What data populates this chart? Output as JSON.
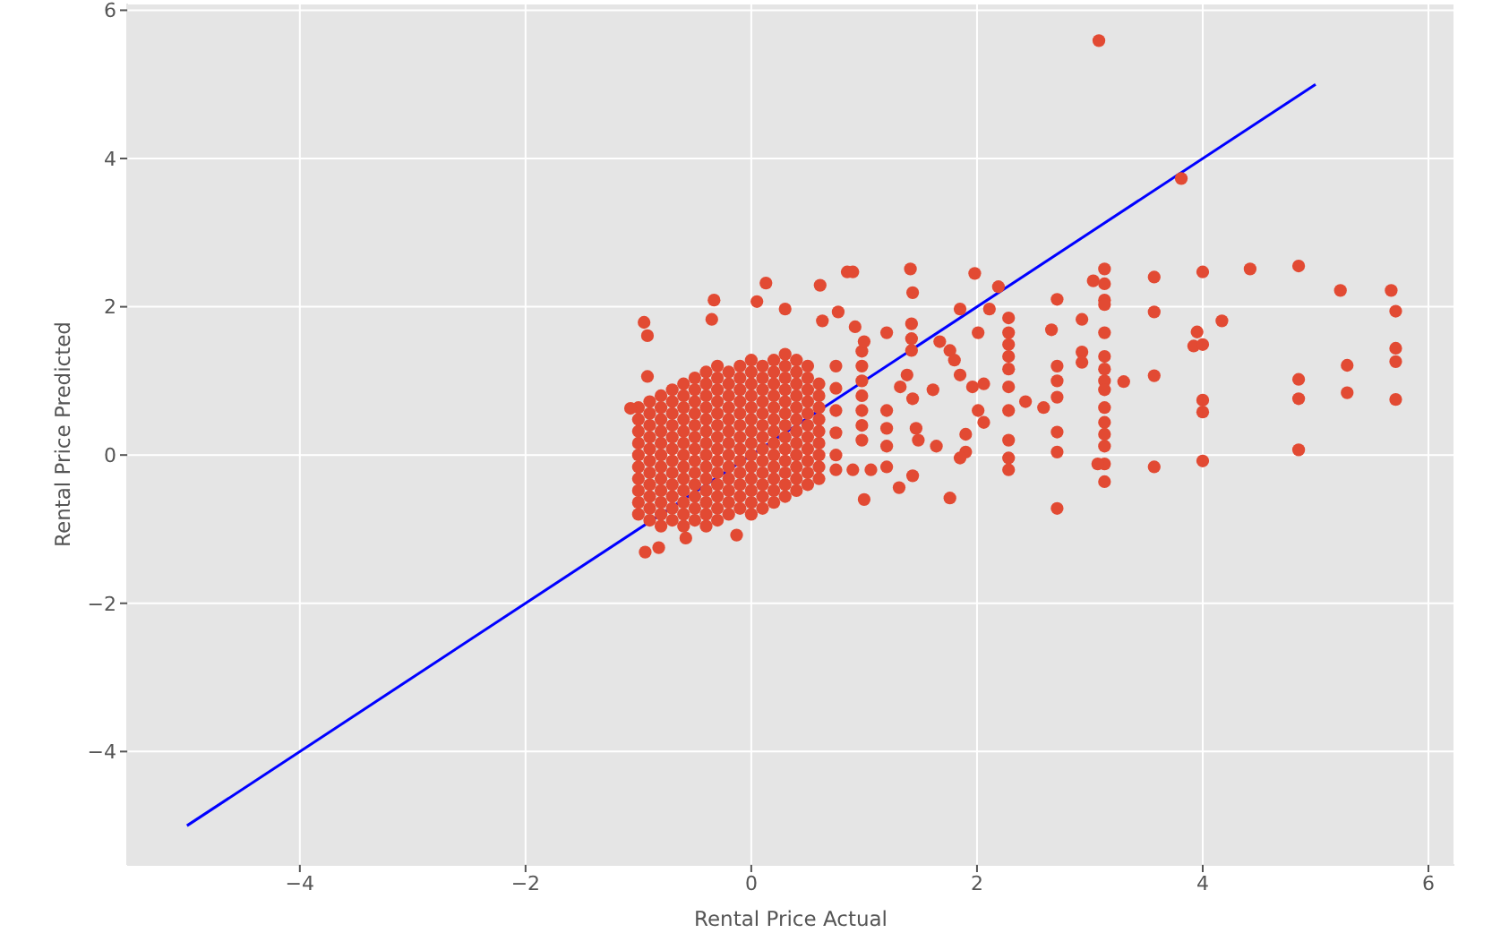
{
  "chart_data": {
    "type": "scatter",
    "xlabel": "Rental Price Actual",
    "ylabel": "Rental Price Predicted",
    "xlim": [
      -5.53,
      6.23
    ],
    "ylim": [
      -5.53,
      6.09
    ],
    "xticks": [
      {
        "value": -4,
        "label": "−4"
      },
      {
        "value": -2,
        "label": "−2"
      },
      0,
      2,
      4,
      6
    ],
    "yticks": [
      {
        "value": -4,
        "label": "−4"
      },
      {
        "value": -2,
        "label": "−2"
      },
      0,
      2,
      4,
      6
    ],
    "grid": true,
    "marker": "circle",
    "series": [
      {
        "type": "scatter",
        "color": "#e24a33",
        "x": [
          -1,
          -1,
          -1,
          -1,
          -1,
          -1,
          -1,
          -1,
          -1,
          -1,
          -0.9,
          -0.9,
          -0.9,
          -0.9,
          -0.9,
          -0.9,
          -0.9,
          -0.9,
          -0.9,
          -0.9,
          -0.9,
          -0.8,
          -0.8,
          -0.8,
          -0.8,
          -0.8,
          -0.8,
          -0.8,
          -0.8,
          -0.8,
          -0.8,
          -0.8,
          -0.8,
          -0.7,
          -0.7,
          -0.7,
          -0.7,
          -0.7,
          -0.7,
          -0.7,
          -0.7,
          -0.7,
          -0.7,
          -0.7,
          -0.7,
          -0.6,
          -0.6,
          -0.6,
          -0.6,
          -0.6,
          -0.6,
          -0.6,
          -0.6,
          -0.6,
          -0.6,
          -0.6,
          -0.6,
          -0.6,
          -0.5,
          -0.5,
          -0.5,
          -0.5,
          -0.5,
          -0.5,
          -0.5,
          -0.5,
          -0.5,
          -0.5,
          -0.5,
          -0.5,
          -0.5,
          -0.4,
          -0.4,
          -0.4,
          -0.4,
          -0.4,
          -0.4,
          -0.4,
          -0.4,
          -0.4,
          -0.4,
          -0.4,
          -0.4,
          -0.4,
          -0.4,
          -0.3,
          -0.3,
          -0.3,
          -0.3,
          -0.3,
          -0.3,
          -0.3,
          -0.3,
          -0.3,
          -0.3,
          -0.3,
          -0.3,
          -0.3,
          -0.3,
          -0.2,
          -0.2,
          -0.2,
          -0.2,
          -0.2,
          -0.2,
          -0.2,
          -0.2,
          -0.2,
          -0.2,
          -0.2,
          -0.2,
          -0.2,
          -0.1,
          -0.1,
          -0.1,
          -0.1,
          -0.1,
          -0.1,
          -0.1,
          -0.1,
          -0.1,
          -0.1,
          -0.1,
          -0.1,
          -0.1,
          0,
          0,
          0,
          0,
          0,
          0,
          0,
          0,
          0,
          0,
          0,
          0,
          0,
          0,
          0.1,
          0.1,
          0.1,
          0.1,
          0.1,
          0.1,
          0.1,
          0.1,
          0.1,
          0.1,
          0.1,
          0.1,
          0.1,
          0.2,
          0.2,
          0.2,
          0.2,
          0.2,
          0.2,
          0.2,
          0.2,
          0.2,
          0.2,
          0.2,
          0.2,
          0.2,
          0.3,
          0.3,
          0.3,
          0.3,
          0.3,
          0.3,
          0.3,
          0.3,
          0.3,
          0.3,
          0.3,
          0.3,
          0.3,
          0.4,
          0.4,
          0.4,
          0.4,
          0.4,
          0.4,
          0.4,
          0.4,
          0.4,
          0.4,
          0.4,
          0.4,
          0.5,
          0.5,
          0.5,
          0.5,
          0.5,
          0.5,
          0.5,
          0.5,
          0.5,
          0.5,
          0.5,
          0.6,
          0.6,
          0.6,
          0.6,
          0.6,
          0.6,
          0.6,
          0.6,
          0.6,
          -0.95,
          -0.92,
          -0.92,
          -1.07,
          -0.33,
          -0.35,
          0.13,
          0.05,
          0.3,
          0.61,
          0.85,
          0.9,
          0.77,
          0.63,
          0.92,
          -0.94,
          -0.82,
          -0.13,
          -0.58,
          0.75,
          0.75,
          0.75,
          0.75,
          0.75,
          0.75,
          0.98,
          0.98,
          0.98,
          0.98,
          0.98,
          0.98,
          0.98,
          1.41,
          1.43,
          1.2,
          1.42,
          1.42,
          1.42,
          1.0,
          1.67,
          1.31,
          1.43,
          1.0,
          1.06,
          0.9,
          1.2,
          1.2,
          1.2,
          1.2,
          1.32,
          1.38,
          1.43,
          1.46,
          1.48,
          1.61,
          1.64,
          1.98,
          2.19,
          1.85,
          2.11,
          2.01,
          2.28,
          2.28,
          2.28,
          2.28,
          2.28,
          2.28,
          2.28,
          2.28,
          2.28,
          2.28,
          1.76,
          1.8,
          1.85,
          1.96,
          2.06,
          2.01,
          2.06,
          1.9,
          1.9,
          1.85,
          2.43,
          2.59,
          1.76,
          2.71,
          2.71,
          2.71,
          2.71,
          2.71,
          2.71,
          2.71,
          2.66,
          3.08,
          3.81,
          2.93,
          2.93,
          2.93,
          3.03,
          3.13,
          3.13,
          3.13,
          3.13,
          3.13,
          3.13,
          3.13,
          3.13,
          3.13,
          3.13,
          3.13,
          3.13,
          3.13,
          3.13,
          3.13,
          3.07,
          3.3,
          3.57,
          3.57,
          3.57,
          3.57,
          4.0,
          3.95,
          3.92,
          4.0,
          4.17,
          4.0,
          4.0,
          4.0,
          4.42,
          4.85,
          4.85,
          4.85,
          4.85,
          5.22,
          5.28,
          5.28,
          5.67,
          5.71,
          5.71,
          5.71,
          5.71
        ],
        "values": [
          -0.8,
          -0.64,
          -0.48,
          -0.32,
          -0.16,
          0,
          0.16,
          0.32,
          0.48,
          0.64,
          -0.88,
          -0.72,
          -0.56,
          -0.4,
          -0.24,
          -0.08,
          0.08,
          0.24,
          0.4,
          0.56,
          0.72,
          -0.96,
          -0.8,
          -0.64,
          -0.48,
          -0.32,
          -0.16,
          0,
          0.16,
          0.32,
          0.48,
          0.64,
          0.8,
          -0.88,
          -0.72,
          -0.56,
          -0.4,
          -0.24,
          -0.08,
          0.08,
          0.24,
          0.4,
          0.56,
          0.72,
          0.88,
          -0.96,
          -0.8,
          -0.64,
          -0.48,
          -0.32,
          -0.16,
          0,
          0.16,
          0.32,
          0.48,
          0.64,
          0.8,
          0.96,
          -0.88,
          -0.72,
          -0.56,
          -0.4,
          -0.24,
          -0.08,
          0.08,
          0.24,
          0.4,
          0.56,
          0.72,
          0.88,
          1.04,
          -0.96,
          -0.8,
          -0.64,
          -0.48,
          -0.32,
          -0.16,
          0,
          0.16,
          0.32,
          0.48,
          0.64,
          0.8,
          0.96,
          1.12,
          -0.88,
          -0.72,
          -0.56,
          -0.4,
          -0.24,
          -0.08,
          0.08,
          0.24,
          0.4,
          0.56,
          0.72,
          0.88,
          1.04,
          1.2,
          -0.8,
          -0.64,
          -0.48,
          -0.32,
          -0.16,
          0,
          0.16,
          0.32,
          0.48,
          0.64,
          0.8,
          0.96,
          1.12,
          -0.72,
          -0.56,
          -0.4,
          -0.24,
          -0.08,
          0.08,
          0.24,
          0.4,
          0.56,
          0.72,
          0.88,
          1.04,
          1.2,
          -0.8,
          -0.64,
          -0.48,
          -0.32,
          -0.16,
          0,
          0.16,
          0.32,
          0.48,
          0.64,
          0.8,
          0.96,
          1.12,
          1.28,
          -0.72,
          -0.56,
          -0.4,
          -0.24,
          -0.08,
          0.08,
          0.24,
          0.4,
          0.56,
          0.72,
          0.88,
          1.04,
          1.2,
          -0.64,
          -0.48,
          -0.32,
          -0.16,
          0,
          0.16,
          0.32,
          0.48,
          0.64,
          0.8,
          0.96,
          1.12,
          1.28,
          -0.56,
          -0.4,
          -0.24,
          -0.08,
          0.08,
          0.24,
          0.4,
          0.56,
          0.72,
          0.88,
          1.04,
          1.2,
          1.36,
          -0.48,
          -0.32,
          -0.16,
          0,
          0.16,
          0.32,
          0.48,
          0.64,
          0.8,
          0.96,
          1.12,
          1.28,
          -0.4,
          -0.24,
          -0.08,
          0.08,
          0.24,
          0.4,
          0.56,
          0.72,
          0.88,
          1.04,
          1.2,
          -0.32,
          -0.16,
          0,
          0.16,
          0.32,
          0.48,
          0.64,
          0.8,
          0.96,
          1.79,
          1.61,
          1.06,
          0.63,
          2.09,
          1.83,
          2.32,
          2.07,
          1.97,
          2.29,
          2.47,
          2.47,
          1.93,
          1.81,
          1.73,
          -1.31,
          -1.25,
          -1.08,
          -1.12,
          1.2,
          0.9,
          0.6,
          0.3,
          0,
          -0.2,
          1.4,
          1.2,
          1.0,
          0.8,
          0.6,
          0.4,
          0.2,
          2.51,
          2.19,
          1.65,
          1.77,
          1.57,
          1.41,
          1.53,
          1.53,
          -0.44,
          -0.28,
          -0.6,
          -0.2,
          -0.2,
          0.6,
          0.36,
          0.12,
          -0.16,
          0.92,
          1.08,
          0.76,
          0.36,
          0.2,
          0.88,
          0.12,
          2.45,
          2.27,
          1.97,
          1.97,
          1.65,
          1.85,
          1.65,
          1.49,
          1.33,
          1.16,
          0.92,
          0.6,
          0.2,
          -0.04,
          -0.2,
          1.41,
          1.28,
          1.08,
          0.92,
          0.96,
          0.6,
          0.44,
          0.28,
          0.04,
          -0.04,
          0.72,
          0.64,
          -0.58,
          2.1,
          1.2,
          1.0,
          0.78,
          0.31,
          0.04,
          -0.72,
          1.69,
          5.59,
          3.73,
          1.83,
          1.39,
          1.25,
          2.35,
          2.51,
          2.31,
          2.09,
          2.03,
          1.65,
          1.33,
          1.16,
          1.0,
          0.88,
          0.64,
          0.44,
          0.28,
          0.12,
          -0.12,
          -0.36,
          -0.12,
          0.99,
          2.4,
          1.93,
          1.07,
          -0.16,
          2.47,
          1.66,
          1.47,
          1.49,
          1.81,
          0.74,
          0.58,
          -0.08,
          2.51,
          2.55,
          1.02,
          0.76,
          0.07,
          2.22,
          1.21,
          0.84,
          2.22,
          1.94,
          1.44,
          1.26,
          0.75
        ]
      },
      {
        "type": "line",
        "color": "#0000ff",
        "marker": "none",
        "x": [
          -5,
          5
        ],
        "values": [
          -5,
          5
        ]
      }
    ]
  }
}
